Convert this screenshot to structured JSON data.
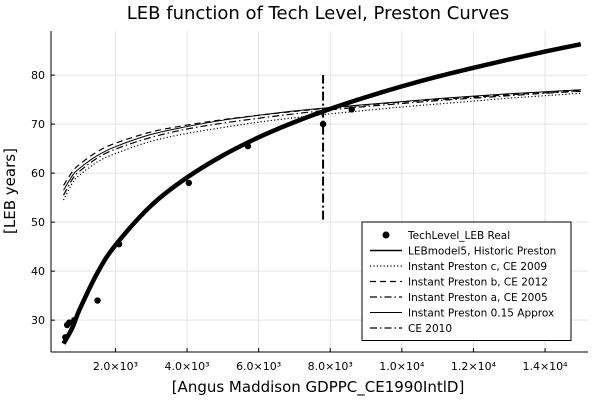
{
  "chart_data": {
    "type": "scatter",
    "title": "LEB function of Tech Level, Preston Curves",
    "xlabel": "[Angus Maddison GDPPC_CE1990IntlD]",
    "ylabel": "[LEB years]",
    "xlim": [
      200,
      15200
    ],
    "ylim": [
      23.5,
      89
    ],
    "x_ticks": [
      {
        "value": 2000,
        "label": "2.0×10³"
      },
      {
        "value": 4000,
        "label": "4.0×10³"
      },
      {
        "value": 6000,
        "label": "6.0×10³"
      },
      {
        "value": 8000,
        "label": "8.0×10³"
      },
      {
        "value": 10000,
        "label": "1.0×10⁴"
      },
      {
        "value": 12000,
        "label": "1.2×10⁴"
      },
      {
        "value": 14000,
        "label": "1.4×10⁴"
      }
    ],
    "y_ticks": [
      30,
      40,
      50,
      60,
      70,
      80
    ],
    "grid": true,
    "legend_position": "bottom-right",
    "series": [
      {
        "name": "TechLevel_LEB Real",
        "kind": "scatter",
        "x": [
          600,
          650,
          710,
          850,
          1500,
          2100,
          4050,
          5700,
          7800,
          8600
        ],
        "y": [
          26.5,
          29,
          29.5,
          30,
          34,
          45.5,
          58,
          65.5,
          70,
          73
        ]
      },
      {
        "name": "LEBmodel5, Historic Preston",
        "kind": "line",
        "style": "thick",
        "x": [
          550,
          800,
          1000,
          1500,
          2000,
          3000,
          4000,
          5000,
          6000,
          7000,
          8000,
          9000,
          10000,
          11000,
          12000,
          13000,
          14000,
          15000
        ],
        "y": [
          25.2,
          28.5,
          32.2,
          39.7,
          45.3,
          53.4,
          59.1,
          63.6,
          67.3,
          70.4,
          73.1,
          75.5,
          77.7,
          79.7,
          81.5,
          83.2,
          84.8,
          86.3
        ]
      },
      {
        "name": "Instant Preston c, CE 2009",
        "kind": "line",
        "style": "dotted",
        "x": [
          550,
          800,
          1000,
          1500,
          2000,
          3000,
          4000,
          5000,
          6000,
          7000,
          8000,
          9000,
          10000,
          11000,
          12000,
          13000,
          14000,
          15000
        ],
        "y": [
          54.5,
          58.0,
          59.6,
          62.3,
          64.0,
          66.5,
          68.1,
          69.3,
          70.4,
          71.3,
          72.1,
          72.8,
          73.5,
          74.1,
          74.7,
          75.3,
          75.8,
          76.3
        ]
      },
      {
        "name": "Instant Preston b, CE 2012",
        "kind": "line",
        "style": "dashed",
        "x": [
          550,
          800,
          1000,
          1500,
          2000,
          3000,
          4000,
          5000,
          6000,
          7000,
          8000,
          9000,
          10000,
          11000,
          12000,
          13000,
          14000,
          15000
        ],
        "y": [
          57.5,
          60.3,
          61.8,
          64.4,
          66.1,
          68.4,
          69.8,
          70.9,
          71.8,
          72.6,
          73.3,
          73.9,
          74.5,
          75.0,
          75.5,
          76.0,
          76.4,
          76.8
        ]
      },
      {
        "name": "Instant Preston a, CE 2005",
        "kind": "line",
        "style": "dashdot",
        "x": [
          550,
          800,
          1000,
          1500,
          2000,
          3000,
          4000,
          5000,
          6000,
          7000,
          8000,
          9000,
          10000,
          11000,
          12000,
          13000,
          14000,
          15000
        ],
        "y": [
          55.5,
          58.8,
          60.4,
          63.1,
          64.9,
          67.3,
          69.0,
          70.2,
          71.2,
          72.1,
          72.9,
          73.6,
          74.2,
          74.8,
          75.3,
          75.8,
          76.3,
          76.7
        ]
      },
      {
        "name": "Instant Preston 0.15 Approx",
        "kind": "line",
        "style": "solid",
        "x": [
          550,
          800,
          1000,
          1500,
          2000,
          3000,
          4000,
          5000,
          6000,
          7000,
          8000,
          9000,
          10000,
          11000,
          12000,
          13000,
          14000,
          15000
        ],
        "y": [
          56.5,
          59.5,
          61.0,
          63.6,
          65.4,
          67.9,
          69.5,
          70.8,
          71.8,
          72.7,
          73.4,
          74.0,
          74.6,
          75.2,
          75.7,
          76.2,
          76.6,
          77.0
        ]
      },
      {
        "name": "CE 2010",
        "kind": "vline",
        "style": "dashdot",
        "x": 7800,
        "y_range": [
          50.5,
          80
        ]
      }
    ]
  }
}
